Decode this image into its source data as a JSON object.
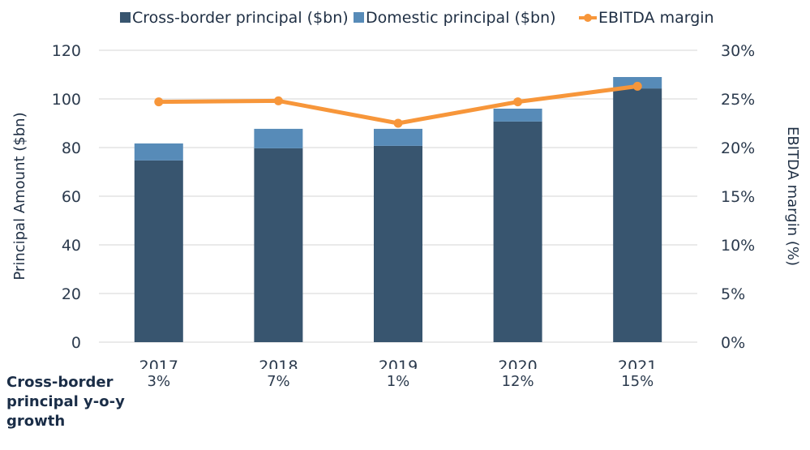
{
  "chart_data": {
    "type": "bar",
    "stacked": true,
    "categories": [
      "2017",
      "2018",
      "2019",
      "2020",
      "2021"
    ],
    "series": [
      {
        "name": "Cross-border principal ($bn)",
        "type": "bar",
        "axis": "left",
        "color": "#38556f",
        "values": [
          74.7,
          79.7,
          80.7,
          90.7,
          104.3
        ]
      },
      {
        "name": "Domestic principal ($bn)",
        "type": "bar",
        "axis": "left",
        "color": "#578bb8",
        "values": [
          7.0,
          8.0,
          7.0,
          5.3,
          4.7
        ]
      },
      {
        "name": "EBITDA margin",
        "type": "line",
        "axis": "right",
        "color": "#f7963a",
        "values": [
          24.7,
          24.8,
          22.5,
          24.7,
          26.3
        ]
      }
    ],
    "ylabel": "Principal Amount ($bn)",
    "ylim": [
      0,
      120
    ],
    "yticks": [
      "0",
      "20",
      "40",
      "60",
      "80",
      "100",
      "120"
    ],
    "y2label": "EBITDA margin (%)",
    "y2lim": [
      0,
      30
    ],
    "y2ticks": [
      "0%",
      "5%",
      "10%",
      "15%",
      "20%",
      "25%",
      "30%"
    ],
    "grid": true,
    "legend_position": "top"
  },
  "growth_row": {
    "label": "Cross-border principal y-o-y growth",
    "values": [
      "3%",
      "7%",
      "1%",
      "12%",
      "15%"
    ]
  }
}
